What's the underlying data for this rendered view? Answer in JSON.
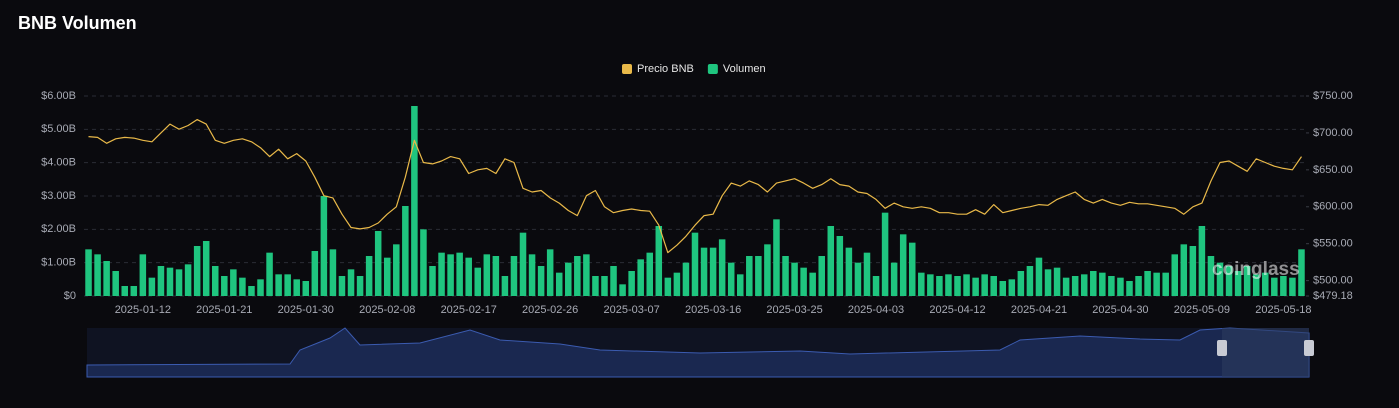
{
  "chart_data": {
    "type": "bar",
    "title": "BNB Volumen",
    "watermark": "coinglass",
    "categories": [
      null,
      null,
      null,
      null,
      null,
      null,
      "2025-01-12",
      null,
      null,
      null,
      null,
      null,
      null,
      null,
      null,
      "2025-01-21",
      null,
      null,
      null,
      null,
      null,
      null,
      null,
      null,
      "2025-01-30",
      null,
      null,
      null,
      null,
      null,
      null,
      null,
      null,
      "2025-02-08",
      null,
      null,
      null,
      null,
      null,
      null,
      null,
      null,
      "2025-02-17",
      null,
      null,
      null,
      null,
      null,
      null,
      null,
      null,
      "2025-02-26",
      null,
      null,
      null,
      null,
      null,
      null,
      null,
      null,
      "2025-03-07",
      null,
      null,
      null,
      null,
      null,
      null,
      null,
      null,
      "2025-03-16",
      null,
      null,
      null,
      null,
      null,
      null,
      null,
      null,
      "2025-03-25",
      null,
      null,
      null,
      null,
      null,
      null,
      null,
      null,
      "2025-04-03",
      null,
      null,
      null,
      null,
      null,
      null,
      null,
      null,
      "2025-04-12",
      null,
      null,
      null,
      null,
      null,
      null,
      null,
      null,
      "2025-04-21",
      null,
      null,
      null,
      null,
      null,
      null,
      null,
      null,
      "2025-04-30",
      null,
      null,
      null,
      null,
      null,
      null,
      null,
      null,
      "2025-05-09",
      null,
      null,
      null,
      null,
      null,
      null,
      null,
      null,
      "2025-05-18",
      null,
      null
    ],
    "series": [
      {
        "name": "Precio BNB",
        "type": "line",
        "axis": "y2",
        "color": "#e9b949",
        "values": [
          695,
          694,
          686,
          692,
          694,
          693,
          690,
          688,
          700,
          712,
          705,
          710,
          718,
          712,
          690,
          686,
          690,
          692,
          688,
          680,
          668,
          678,
          665,
          672,
          662,
          640,
          615,
          612,
          590,
          572,
          570,
          572,
          578,
          590,
          600,
          640,
          690,
          660,
          658,
          662,
          668,
          665,
          645,
          650,
          652,
          645,
          665,
          660,
          625,
          620,
          622,
          612,
          605,
          595,
          588,
          615,
          622,
          600,
          592,
          595,
          597,
          595,
          594,
          575,
          538,
          548,
          560,
          575,
          588,
          590,
          615,
          632,
          628,
          635,
          630,
          620,
          632,
          635,
          638,
          632,
          625,
          630,
          638,
          630,
          628,
          620,
          618,
          610,
          598,
          605,
          600,
          598,
          600,
          598,
          592,
          592,
          590,
          590,
          596,
          590,
          603,
          592,
          595,
          598,
          600,
          603,
          602,
          610,
          615,
          620,
          610,
          605,
          610,
          605,
          602,
          606,
          604,
          604,
          602,
          600,
          598,
          590,
          600,
          605,
          635,
          660,
          662,
          655,
          648,
          665,
          660,
          655,
          652,
          650,
          668
        ]
      },
      {
        "name": "Volumen",
        "type": "bar",
        "color": "#1fc57f",
        "values": [
          1.4,
          1.25,
          1.05,
          0.75,
          0.3,
          0.3,
          1.25,
          0.55,
          0.9,
          0.85,
          0.8,
          0.95,
          1.5,
          1.65,
          0.9,
          0.6,
          0.8,
          0.55,
          0.3,
          0.5,
          1.3,
          0.65,
          0.65,
          0.5,
          0.45,
          1.35,
          3.0,
          1.4,
          0.6,
          0.8,
          0.6,
          1.2,
          1.95,
          1.15,
          1.55,
          2.7,
          5.7,
          2.0,
          0.9,
          1.3,
          1.25,
          1.3,
          1.15,
          0.85,
          1.25,
          1.2,
          0.6,
          1.2,
          1.9,
          1.25,
          0.9,
          1.4,
          0.7,
          1.0,
          1.2,
          1.25,
          0.6,
          0.6,
          0.9,
          0.35,
          0.75,
          1.1,
          1.3,
          2.1,
          0.55,
          0.7,
          1.0,
          1.9,
          1.45,
          1.45,
          1.7,
          1.0,
          0.65,
          1.2,
          1.2,
          1.55,
          2.3,
          1.2,
          1.0,
          0.85,
          0.7,
          1.2,
          2.1,
          1.8,
          1.45,
          1.0,
          1.3,
          0.6,
          2.5,
          1.0,
          1.85,
          1.6,
          0.7,
          0.65,
          0.6,
          0.65,
          0.6,
          0.65,
          0.55,
          0.65,
          0.6,
          0.45,
          0.5,
          0.75,
          0.9,
          1.15,
          0.8,
          0.85,
          0.55,
          0.6,
          0.65,
          0.75,
          0.7,
          0.6,
          0.55,
          0.45,
          0.6,
          0.75,
          0.7,
          0.7,
          1.25,
          1.55,
          1.5,
          2.1,
          1.2,
          1.0,
          0.9,
          0.75,
          0.9,
          0.65,
          0.7,
          0.55,
          0.6,
          0.55,
          1.4
        ]
      }
    ],
    "ylim": [
      0,
      6
    ],
    "yticks": [
      {
        "value": 0,
        "label": "$0"
      },
      {
        "value": 1,
        "label": "$1.00B"
      },
      {
        "value": 2,
        "label": "$2.00B"
      },
      {
        "value": 3,
        "label": "$3.00B"
      },
      {
        "value": 4,
        "label": "$4.00B"
      },
      {
        "value": 5,
        "label": "$5.00B"
      },
      {
        "value": 6,
        "label": "$6.00B"
      }
    ],
    "y2lim": [
      479.18,
      750
    ],
    "y2ticks": [
      {
        "value": 479.18,
        "label": "$479.18"
      },
      {
        "value": 500,
        "label": "$500.00"
      },
      {
        "value": 550,
        "label": "$550.00"
      },
      {
        "value": 600,
        "label": "$600.00"
      },
      {
        "value": 650,
        "label": "$650.00"
      },
      {
        "value": 700,
        "label": "$700.00"
      },
      {
        "value": 750,
        "label": "$750.00"
      }
    ],
    "grid": true,
    "legend": "top"
  }
}
